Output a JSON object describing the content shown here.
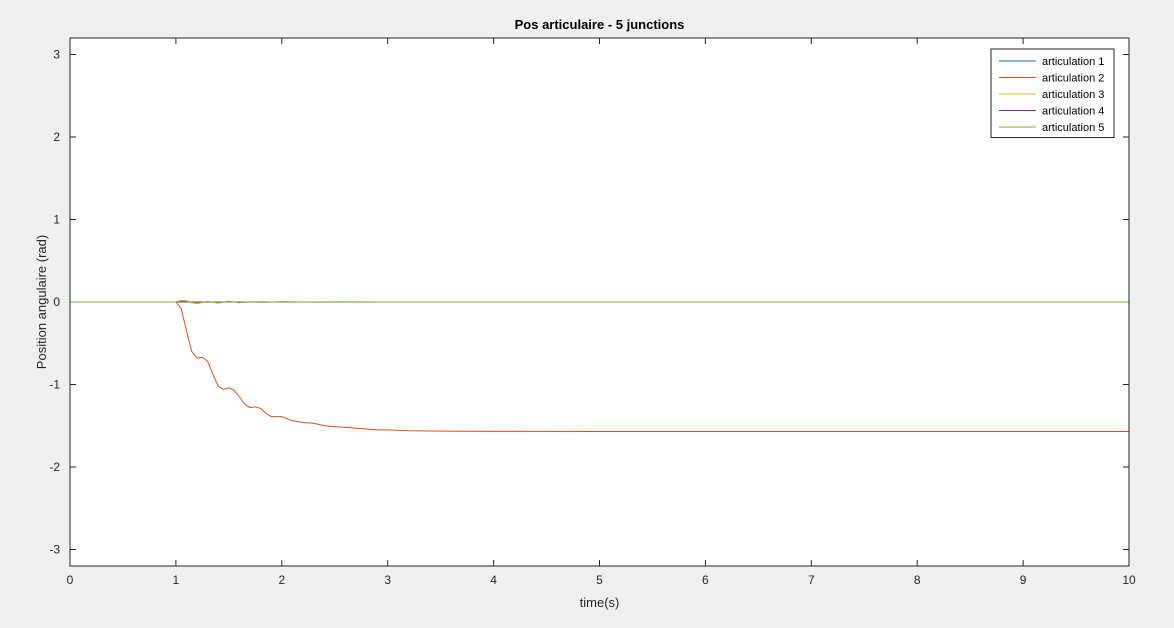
{
  "chart_data": {
    "type": "line",
    "title": "Pos articulaire - 5 junctions",
    "xlabel": "time(s)",
    "ylabel": "Position angulaire (rad)",
    "xlim": [
      0,
      10
    ],
    "ylim": [
      -3.2,
      3.2
    ],
    "xticks": [
      0,
      1,
      2,
      3,
      4,
      5,
      6,
      7,
      8,
      9,
      10
    ],
    "yticks": [
      -3,
      -2,
      -1,
      0,
      1,
      2,
      3
    ],
    "xtick_labels": [
      "0",
      "1",
      "2",
      "3",
      "4",
      "5",
      "6",
      "7",
      "8",
      "9",
      "10"
    ],
    "ytick_labels": [
      "-3",
      "-2",
      "-1",
      "0",
      "1",
      "2",
      "3"
    ],
    "grid": false,
    "legend_position": "top-right",
    "series": [
      {
        "name": "articulation 1",
        "color": "#0072BD",
        "x": [
          0,
          1.0,
          10
        ],
        "y": [
          0,
          0,
          0
        ]
      },
      {
        "name": "articulation 2",
        "color": "#D95319",
        "x": [
          0,
          1.0,
          1.05,
          1.1,
          1.15,
          1.2,
          1.25,
          1.3,
          1.35,
          1.4,
          1.45,
          1.5,
          1.55,
          1.6,
          1.65,
          1.7,
          1.75,
          1.8,
          1.85,
          1.9,
          1.95,
          2.0,
          2.1,
          2.2,
          2.3,
          2.4,
          2.5,
          2.6,
          2.7,
          2.8,
          2.9,
          3.0,
          3.2,
          3.5,
          4.0,
          5.0,
          6.0,
          8.0,
          10.0
        ],
        "y": [
          0,
          0,
          -0.08,
          -0.35,
          -0.6,
          -0.68,
          -0.67,
          -0.72,
          -0.88,
          -1.02,
          -1.06,
          -1.04,
          -1.07,
          -1.15,
          -1.24,
          -1.28,
          -1.27,
          -1.29,
          -1.35,
          -1.39,
          -1.39,
          -1.39,
          -1.44,
          -1.46,
          -1.47,
          -1.5,
          -1.51,
          -1.52,
          -1.53,
          -1.54,
          -1.55,
          -1.55,
          -1.56,
          -1.565,
          -1.568,
          -1.57,
          -1.57,
          -1.57,
          -1.57
        ]
      },
      {
        "name": "articulation 3",
        "color": "#EDB120",
        "x": [
          0,
          1.0,
          1.05,
          1.1,
          1.15,
          1.2,
          1.3,
          1.4,
          1.5,
          1.6,
          1.7,
          1.8,
          2.0,
          2.3,
          2.6,
          3.0,
          10
        ],
        "y": [
          0,
          0,
          0.02,
          0.015,
          -0.01,
          -0.02,
          0.005,
          -0.015,
          0.01,
          -0.01,
          0.005,
          -0.005,
          0.004,
          -0.003,
          0.002,
          0,
          0
        ]
      },
      {
        "name": "articulation 4",
        "color": "#7E2F8E",
        "x": [
          0,
          1.0,
          10
        ],
        "y": [
          0,
          0,
          0
        ]
      },
      {
        "name": "articulation 5",
        "color": "#77AC30",
        "x": [
          0,
          1.0,
          1.05,
          1.1,
          1.15,
          1.2,
          1.3,
          1.4,
          1.5,
          1.6,
          1.8,
          2.0,
          2.5,
          3.0,
          10
        ],
        "y": [
          0,
          0,
          0.015,
          0.01,
          -0.005,
          -0.012,
          0.006,
          -0.008,
          0.005,
          -0.004,
          0.003,
          -0.002,
          0.001,
          0,
          0
        ]
      }
    ]
  }
}
